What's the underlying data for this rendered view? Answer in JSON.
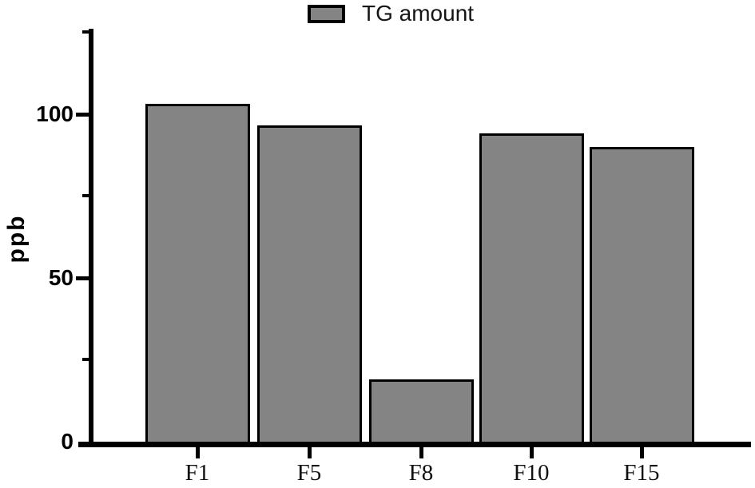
{
  "chart_data": {
    "type": "bar",
    "legend": [
      {
        "label": "TG amount",
        "color": "#848484"
      }
    ],
    "categories": [
      "F1",
      "F5",
      "F8",
      "F10",
      "F15"
    ],
    "values": [
      103,
      96.5,
      19,
      94,
      90
    ],
    "ylabel": "ppb",
    "ylim": [
      0,
      125
    ],
    "yticks_major": [
      0,
      50,
      100
    ],
    "yticks_minor": [
      25,
      75,
      125
    ],
    "grid": false,
    "legend_position": "top-center",
    "colors": {
      "bar_fill": "#848484",
      "bar_border": "#000000",
      "axis": "#000000",
      "background": "#ffffff"
    }
  }
}
